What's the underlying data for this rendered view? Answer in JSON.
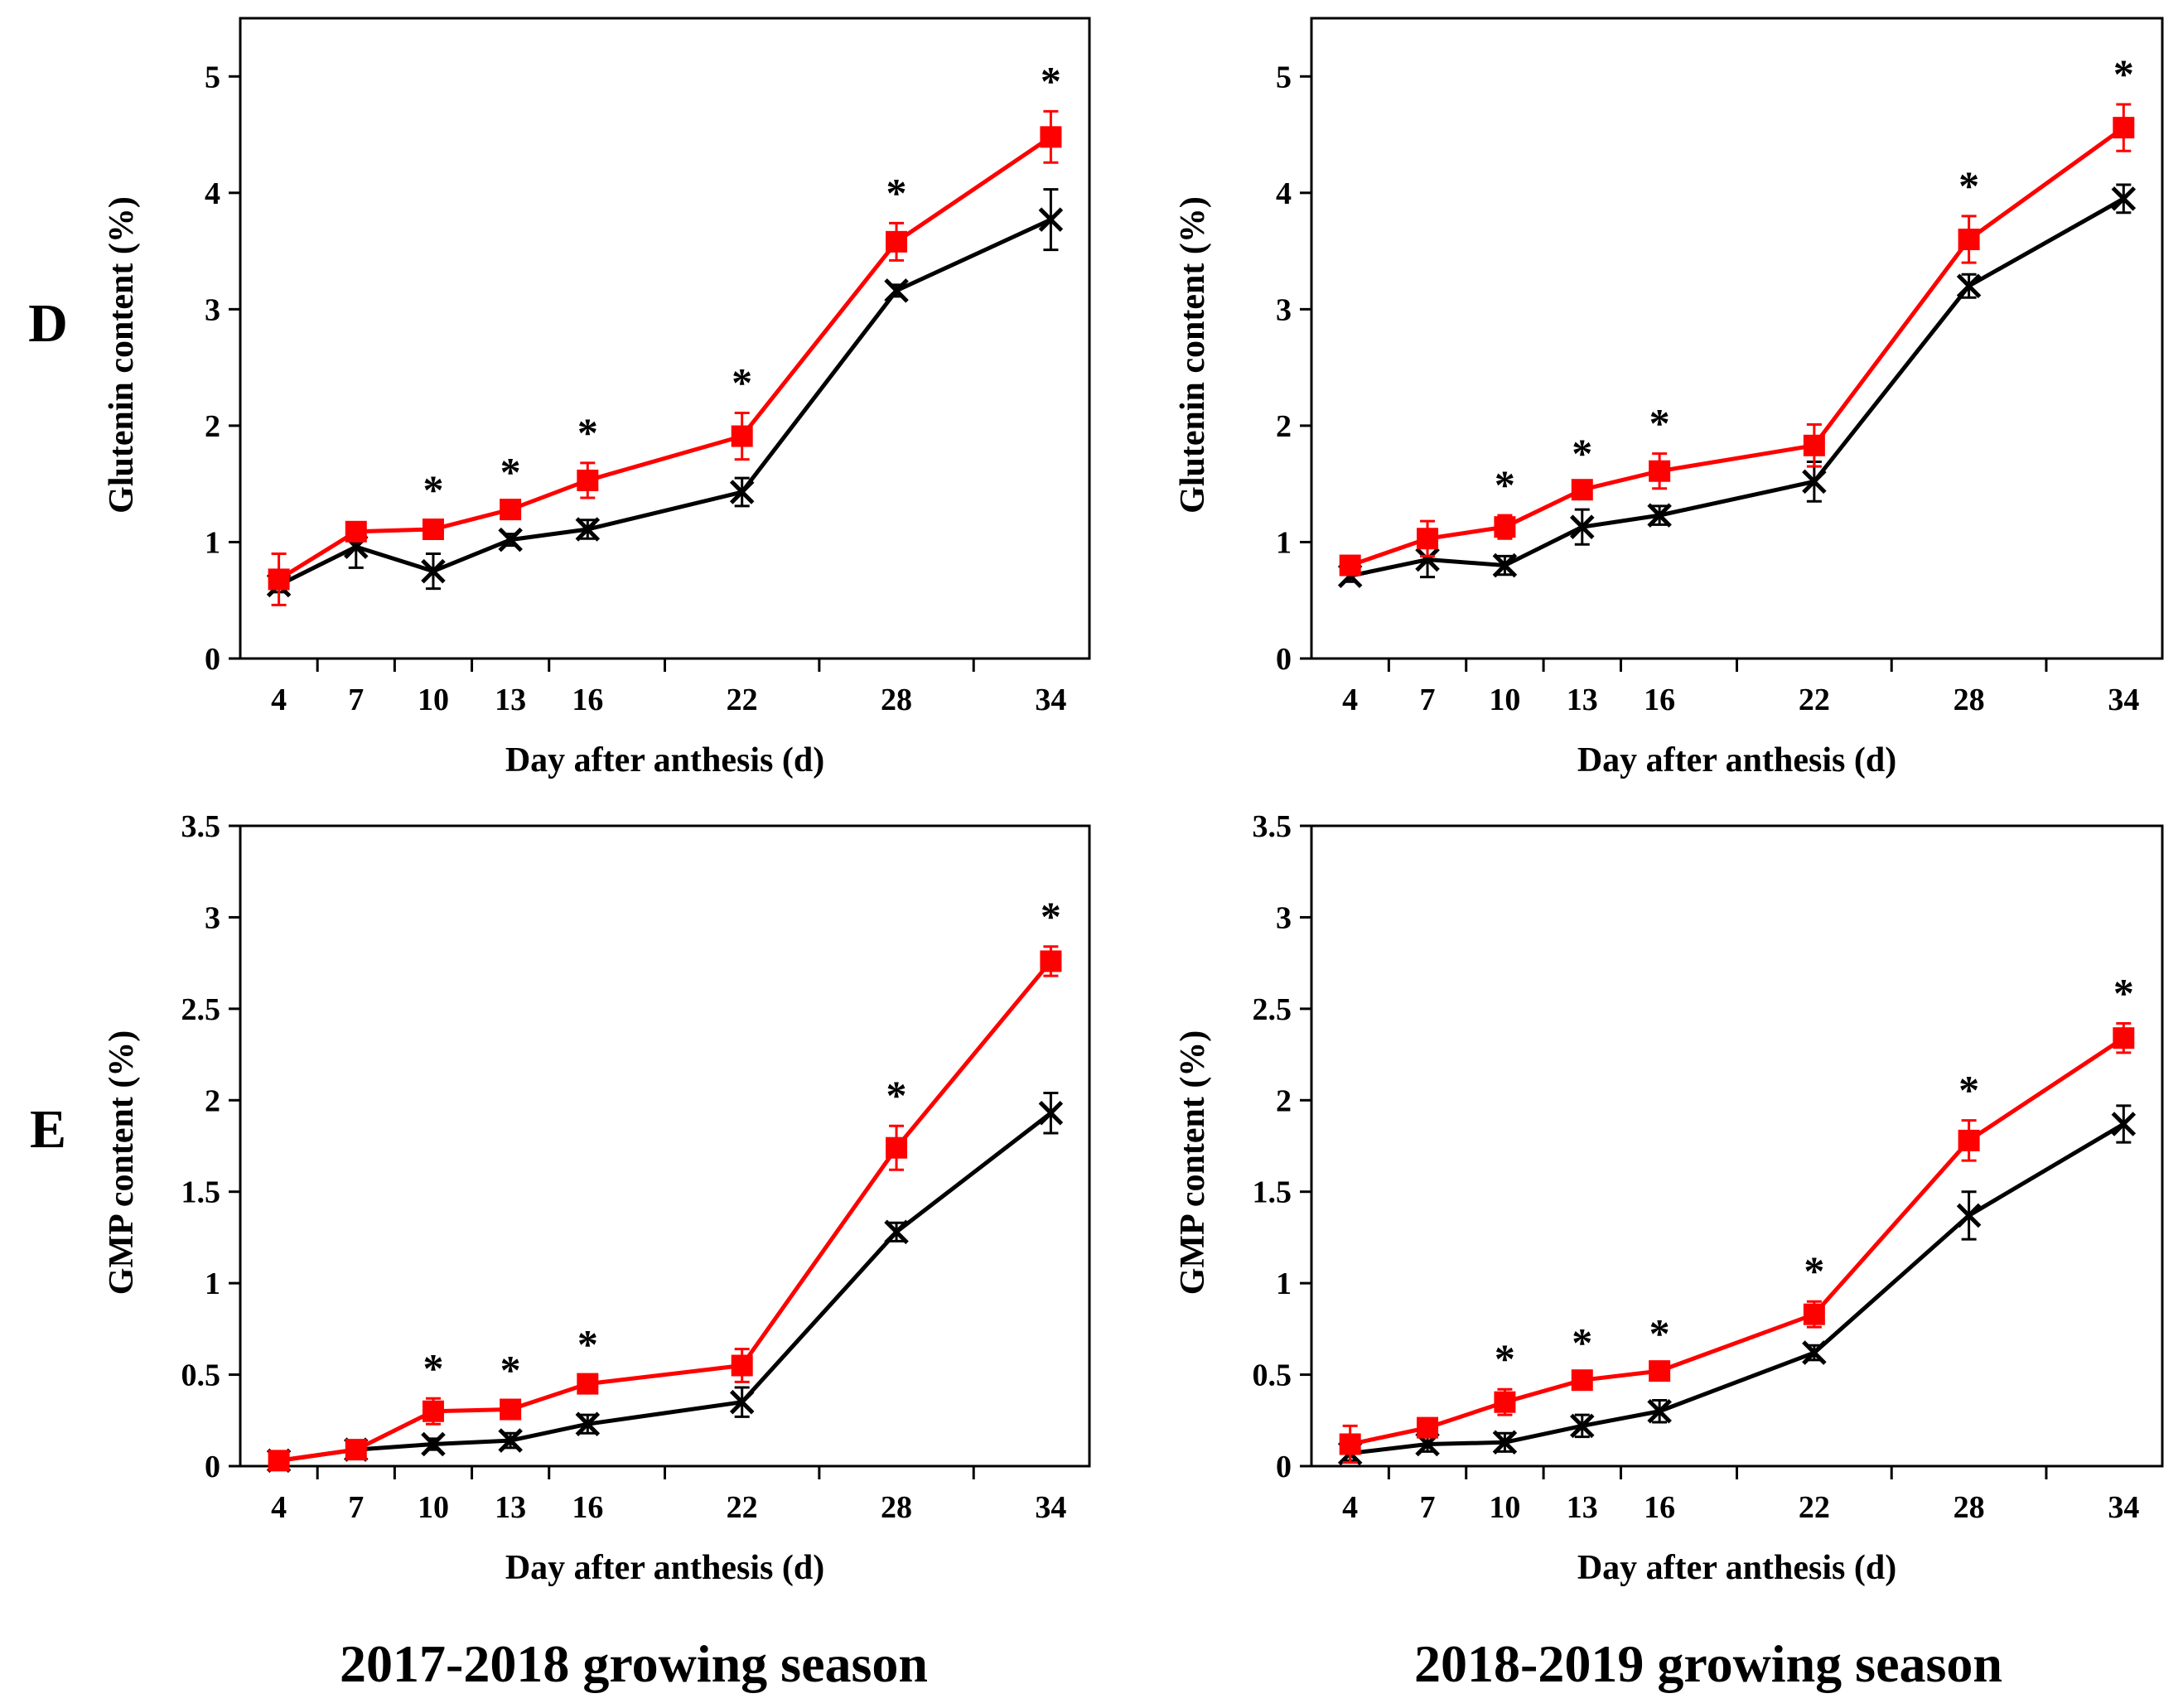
{
  "figure": {
    "row_labels": [
      "D",
      "E"
    ],
    "season_titles": [
      "2017-2018 growing season",
      "2018-2019 growing season"
    ]
  },
  "colors": {
    "series_red": "#ff0000",
    "series_black": "#000000",
    "axis": "#000000",
    "background": "#ffffff"
  },
  "chart_data": [
    {
      "type": "line",
      "panel": "D",
      "season": "2017-2018 growing season",
      "xlabel": "Day after anthesis (d)",
      "ylabel": "Glutenin content (%)",
      "categories": [
        "4",
        "7",
        "10",
        "13",
        "16",
        "22",
        "28",
        "34"
      ],
      "x": [
        4,
        7,
        10,
        13,
        16,
        22,
        28,
        34
      ],
      "ylim": [
        0,
        5.5
      ],
      "yticks": [
        0,
        1,
        2,
        3,
        4,
        5
      ],
      "series": [
        {
          "name": "red-square",
          "marker": "square",
          "color": "#ff0000",
          "values": [
            0.68,
            1.09,
            1.11,
            1.28,
            1.53,
            1.91,
            3.58,
            4.48
          ],
          "errors": [
            0.22,
            0.08,
            0.08,
            0.06,
            0.15,
            0.2,
            0.16,
            0.22
          ]
        },
        {
          "name": "black-cross",
          "marker": "cross",
          "color": "#000000",
          "values": [
            0.63,
            0.96,
            0.75,
            1.02,
            1.11,
            1.43,
            3.16,
            3.77
          ],
          "errors": [
            0.06,
            0.18,
            0.15,
            0.05,
            0.08,
            0.12,
            0.05,
            0.26
          ]
        }
      ],
      "significance": [
        "",
        "",
        "*",
        "*",
        "*",
        "*",
        "*",
        "*"
      ]
    },
    {
      "type": "line",
      "panel": "D",
      "season": "2018-2019 growing season",
      "xlabel": "Day after anthesis (d)",
      "ylabel": "Glutenin content (%)",
      "categories": [
        "4",
        "7",
        "10",
        "13",
        "16",
        "22",
        "28",
        "34"
      ],
      "x": [
        4,
        7,
        10,
        13,
        16,
        22,
        28,
        34
      ],
      "ylim": [
        0,
        5.5
      ],
      "yticks": [
        0,
        1,
        2,
        3,
        4,
        5
      ],
      "series": [
        {
          "name": "red-square",
          "marker": "square",
          "color": "#ff0000",
          "values": [
            0.8,
            1.03,
            1.13,
            1.45,
            1.61,
            1.83,
            3.6,
            4.56
          ],
          "errors": [
            0.05,
            0.15,
            0.1,
            0.05,
            0.15,
            0.18,
            0.2,
            0.2
          ]
        },
        {
          "name": "black-cross",
          "marker": "cross",
          "color": "#000000",
          "values": [
            0.71,
            0.85,
            0.8,
            1.13,
            1.23,
            1.52,
            3.2,
            3.95
          ],
          "errors": [
            0.05,
            0.15,
            0.08,
            0.15,
            0.08,
            0.17,
            0.1,
            0.12
          ]
        }
      ],
      "significance": [
        "",
        "",
        "*",
        "*",
        "*",
        "",
        "*",
        "*"
      ]
    },
    {
      "type": "line",
      "panel": "E",
      "season": "2017-2018 growing season",
      "xlabel": "Day after anthesis (d)",
      "ylabel": "GMP content (%)",
      "categories": [
        "4",
        "7",
        "10",
        "13",
        "16",
        "22",
        "28",
        "34"
      ],
      "x": [
        4,
        7,
        10,
        13,
        16,
        22,
        28,
        34
      ],
      "ylim": [
        0,
        3.5
      ],
      "yticks": [
        0,
        0.5,
        1,
        1.5,
        2,
        2.5,
        3,
        3.5
      ],
      "series": [
        {
          "name": "red-square",
          "marker": "square",
          "color": "#ff0000",
          "values": [
            0.03,
            0.09,
            0.3,
            0.31,
            0.45,
            0.55,
            1.74,
            2.76
          ],
          "errors": [
            0.02,
            0.03,
            0.07,
            0.05,
            0.05,
            0.09,
            0.12,
            0.08
          ]
        },
        {
          "name": "black-cross",
          "marker": "cross",
          "color": "#000000",
          "values": [
            0.03,
            0.09,
            0.12,
            0.14,
            0.23,
            0.35,
            1.28,
            1.93
          ],
          "errors": [
            0.02,
            0.03,
            0.03,
            0.04,
            0.05,
            0.08,
            0.05,
            0.11
          ]
        }
      ],
      "significance": [
        "",
        "",
        "*",
        "*",
        "*",
        "",
        "*",
        "*"
      ]
    },
    {
      "type": "line",
      "panel": "E",
      "season": "2018-2019 growing season",
      "xlabel": "Day after anthesis (d)",
      "ylabel": "GMP content (%)",
      "categories": [
        "4",
        "7",
        "10",
        "13",
        "16",
        "22",
        "28",
        "34"
      ],
      "x": [
        4,
        7,
        10,
        13,
        16,
        22,
        28,
        34
      ],
      "ylim": [
        0,
        3.5
      ],
      "yticks": [
        0,
        0.5,
        1,
        1.5,
        2,
        2.5,
        3,
        3.5
      ],
      "series": [
        {
          "name": "red-square",
          "marker": "square",
          "color": "#ff0000",
          "values": [
            0.12,
            0.21,
            0.35,
            0.47,
            0.52,
            0.83,
            1.78,
            2.34
          ],
          "errors": [
            0.1,
            0.05,
            0.07,
            0.04,
            0.04,
            0.07,
            0.11,
            0.08
          ]
        },
        {
          "name": "black-cross",
          "marker": "cross",
          "color": "#000000",
          "values": [
            0.07,
            0.12,
            0.13,
            0.22,
            0.3,
            0.62,
            1.37,
            1.87
          ],
          "errors": [
            0.04,
            0.04,
            0.05,
            0.06,
            0.06,
            0.04,
            0.13,
            0.1
          ]
        }
      ],
      "significance": [
        "",
        "",
        "*",
        "*",
        "*",
        "*",
        "*",
        "*"
      ]
    }
  ]
}
